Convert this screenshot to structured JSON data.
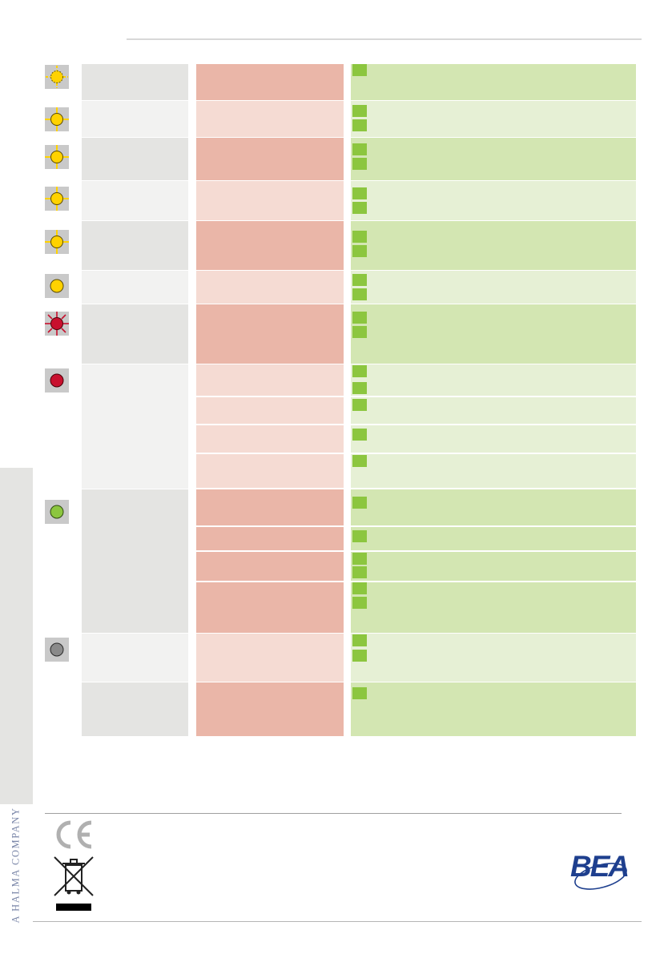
{
  "footer": {
    "company_tagline": "A HALMA COMPANY",
    "logo_text": "BEA",
    "ce_mark": "CE"
  },
  "colors": {
    "grey_cell": "#e4e4e2",
    "salmon_dark": "#eab6a8",
    "salmon_light": "#f5dbd3",
    "green_dark": "#d3e6b2",
    "green_light": "#e6f0d5",
    "green_square": "#8cc63f",
    "led_yellow": "#ffd200",
    "led_red": "#c8102e",
    "led_green": "#8cc63f",
    "led_grey": "#8a8a8a",
    "brand_blue": "#1e3f8e"
  },
  "status_leds": [
    {
      "name": "yellow-flashing-icon",
      "color": "yellow",
      "state": "flashing-dashed"
    },
    {
      "name": "yellow-flashing-icon",
      "color": "yellow",
      "state": "flashing"
    },
    {
      "name": "yellow-flashing-icon",
      "color": "yellow",
      "state": "flashing"
    },
    {
      "name": "yellow-flashing-icon",
      "color": "yellow",
      "state": "flashing"
    },
    {
      "name": "yellow-flashing-icon",
      "color": "yellow",
      "state": "flashing"
    },
    {
      "name": "yellow-steady-icon",
      "color": "yellow",
      "state": "steady"
    },
    {
      "name": "red-flashing-icon",
      "color": "red",
      "state": "flashing"
    },
    {
      "name": "red-steady-icon",
      "color": "red",
      "state": "steady"
    },
    {
      "name": "green-steady-icon",
      "color": "green",
      "state": "steady"
    },
    {
      "name": "grey-steady-icon",
      "color": "grey",
      "state": "steady"
    }
  ]
}
